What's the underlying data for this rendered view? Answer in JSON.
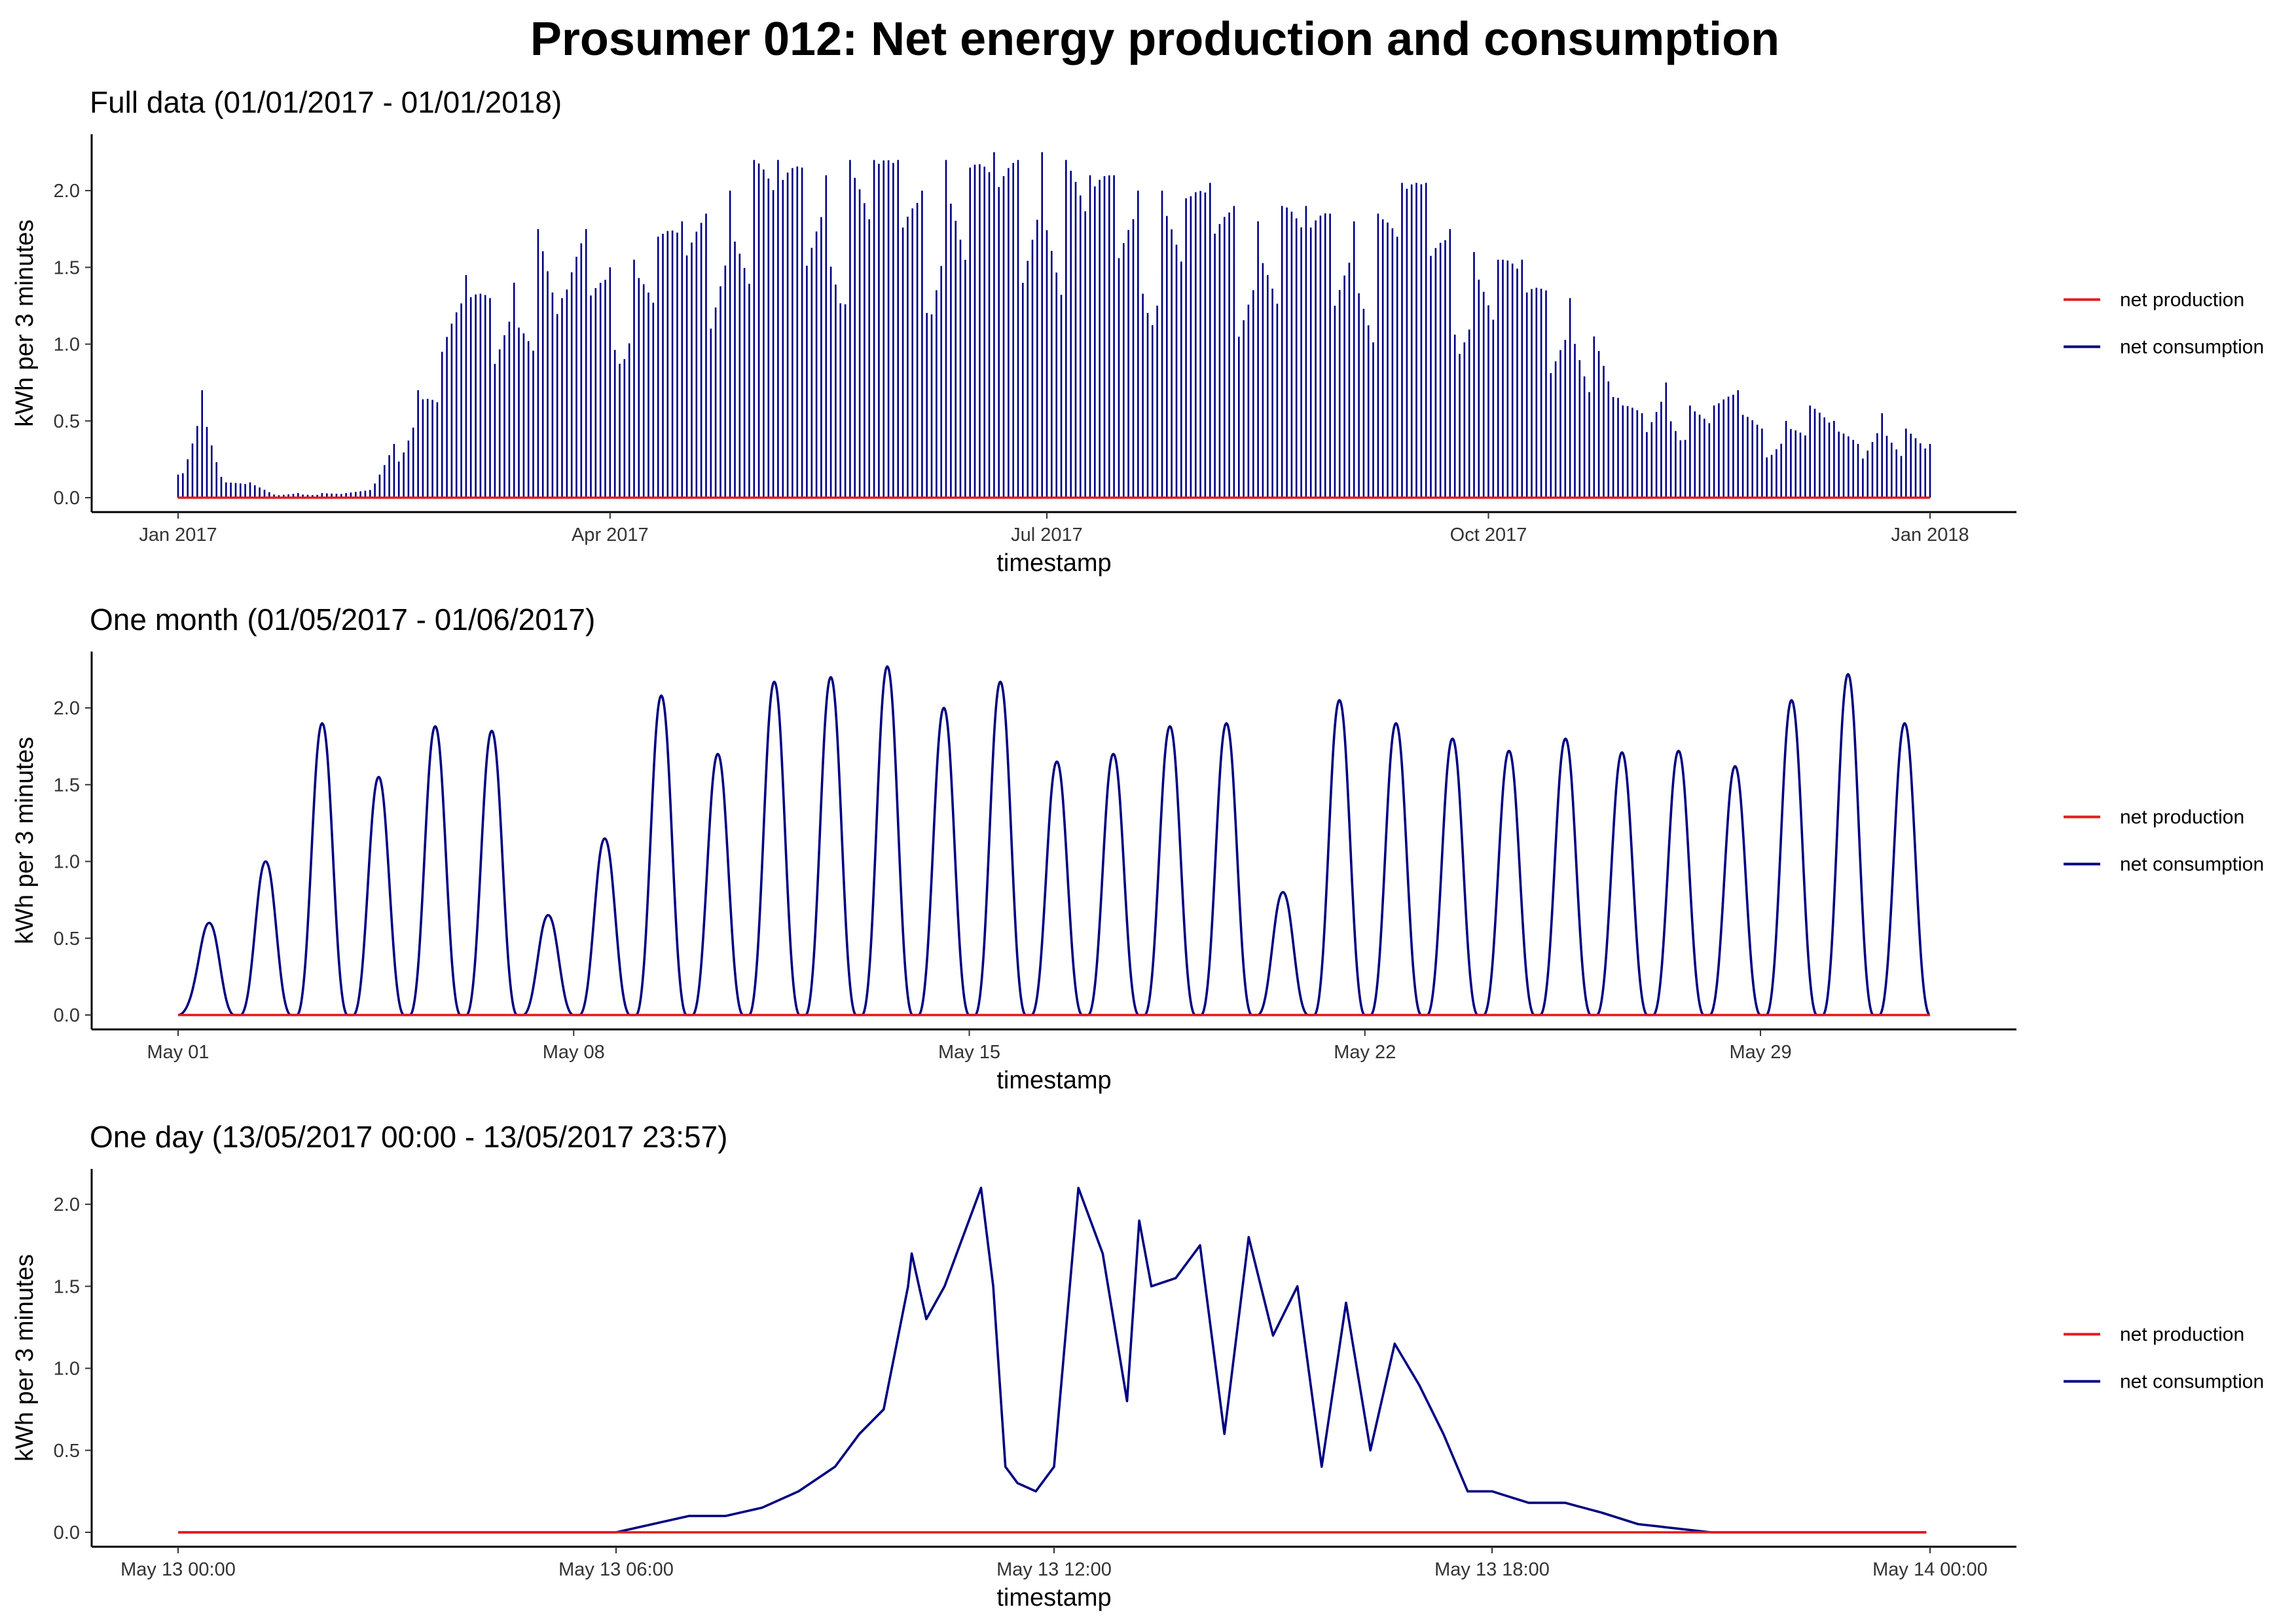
{
  "title": "Prosumer 012: Net energy production and consumption",
  "colors": {
    "net_production": "#e41a1c",
    "net_consumption": "#000080",
    "axis": "#000000",
    "tick_text": "#333333"
  },
  "legend": {
    "position": "right",
    "items": [
      {
        "label": "net production",
        "color": "#e41a1c"
      },
      {
        "label": "net consumption",
        "color": "#000080"
      }
    ]
  },
  "chart_data": [
    {
      "type": "line",
      "subtitle": "Full data (01/01/2017 - 01/01/2018)",
      "xlabel": "timestamp",
      "ylabel": "kWh per 3 minutes",
      "x_unit": "date",
      "x_ticks": [
        "Jan 2017",
        "Apr 2017",
        "Jul 2017",
        "Oct 2017",
        "Jan 2018"
      ],
      "x_tick_values": [
        "2017-01-01",
        "2017-04-01",
        "2017-07-01",
        "2017-10-01",
        "2018-01-01"
      ],
      "ylim": [
        0,
        2.35
      ],
      "y_ticks": [
        "0.0",
        "0.5",
        "1.0",
        "1.5",
        "2.0"
      ],
      "grid": false,
      "series": [
        {
          "name": "net production",
          "color": "#e41a1c",
          "x": [
            "2017-01-01",
            "2018-01-01"
          ],
          "values": [
            0,
            0
          ]
        },
        {
          "name": "net consumption",
          "color": "#000080",
          "x": [
            "2017-01-01",
            "2017-01-06",
            "2017-01-11",
            "2017-01-16",
            "2017-01-21",
            "2017-01-26",
            "2017-01-31",
            "2017-02-05",
            "2017-02-10",
            "2017-02-15",
            "2017-02-20",
            "2017-02-25",
            "2017-03-02",
            "2017-03-07",
            "2017-03-12",
            "2017-03-17",
            "2017-03-22",
            "2017-03-27",
            "2017-04-01",
            "2017-04-06",
            "2017-04-11",
            "2017-04-16",
            "2017-04-21",
            "2017-04-26",
            "2017-05-01",
            "2017-05-06",
            "2017-05-11",
            "2017-05-16",
            "2017-05-21",
            "2017-05-26",
            "2017-05-31",
            "2017-06-05",
            "2017-06-10",
            "2017-06-15",
            "2017-06-20",
            "2017-06-25",
            "2017-06-30",
            "2017-07-05",
            "2017-07-10",
            "2017-07-15",
            "2017-07-20",
            "2017-07-25",
            "2017-07-30",
            "2017-08-04",
            "2017-08-09",
            "2017-08-14",
            "2017-08-19",
            "2017-08-24",
            "2017-08-29",
            "2017-09-03",
            "2017-09-08",
            "2017-09-13",
            "2017-09-18",
            "2017-09-23",
            "2017-09-28",
            "2017-10-03",
            "2017-10-08",
            "2017-10-13",
            "2017-10-18",
            "2017-10-23",
            "2017-10-28",
            "2017-11-02",
            "2017-11-07",
            "2017-11-12",
            "2017-11-17",
            "2017-11-22",
            "2017-11-27",
            "2017-12-02",
            "2017-12-07",
            "2017-12-12",
            "2017-12-17",
            "2017-12-22",
            "2017-12-27",
            "2018-01-01"
          ],
          "values": [
            0.15,
            0.7,
            0.1,
            0.1,
            0.02,
            0.03,
            0.03,
            0.03,
            0.05,
            0.35,
            0.7,
            0.95,
            1.45,
            1.3,
            1.4,
            1.75,
            1.3,
            1.75,
            1.5,
            1.55,
            1.7,
            1.8,
            1.85,
            2.0,
            2.2,
            2.2,
            2.15,
            2.1,
            2.2,
            2.2,
            2.2,
            2.0,
            2.2,
            2.15,
            2.25,
            2.2,
            2.25,
            2.2,
            2.1,
            2.1,
            2.0,
            2.0,
            1.95,
            2.05,
            1.9,
            1.8,
            1.9,
            1.9,
            1.85,
            1.8,
            1.85,
            2.05,
            2.05,
            1.75,
            1.6,
            1.55,
            1.55,
            1.35,
            1.3,
            1.05,
            0.65,
            0.55,
            0.75,
            0.6,
            0.6,
            0.7,
            0.45,
            0.5,
            0.6,
            0.5,
            0.35,
            0.55,
            0.45,
            0.35
          ]
        }
      ]
    },
    {
      "type": "line",
      "subtitle": "One month (01/05/2017 - 01/06/2017)",
      "xlabel": "timestamp",
      "ylabel": "kWh per 3 minutes",
      "x_unit": "date",
      "x_ticks": [
        "May 01",
        "May 08",
        "May 15",
        "May 22",
        "May 29"
      ],
      "x_tick_values": [
        "2017-05-01",
        "2017-05-08",
        "2017-05-15",
        "2017-05-22",
        "2017-05-29"
      ],
      "ylim": [
        0,
        2.35
      ],
      "y_ticks": [
        "0.0",
        "0.5",
        "1.0",
        "1.5",
        "2.0"
      ],
      "grid": false,
      "series": [
        {
          "name": "net production",
          "color": "#e41a1c",
          "x": [
            "2017-05-01",
            "2017-06-01"
          ],
          "values": [
            0,
            0
          ]
        },
        {
          "name": "net consumption",
          "color": "#000080",
          "x": [
            "2017-05-01",
            "2017-05-02",
            "2017-05-03",
            "2017-05-04",
            "2017-05-05",
            "2017-05-06",
            "2017-05-07",
            "2017-05-08",
            "2017-05-09",
            "2017-05-10",
            "2017-05-11",
            "2017-05-12",
            "2017-05-13",
            "2017-05-14",
            "2017-05-15",
            "2017-05-16",
            "2017-05-17",
            "2017-05-18",
            "2017-05-19",
            "2017-05-20",
            "2017-05-21",
            "2017-05-22",
            "2017-05-23",
            "2017-05-24",
            "2017-05-25",
            "2017-05-26",
            "2017-05-27",
            "2017-05-28",
            "2017-05-29",
            "2017-05-30",
            "2017-05-31"
          ],
          "values": [
            0.6,
            1.0,
            1.9,
            1.55,
            1.88,
            1.85,
            0.65,
            1.15,
            2.08,
            1.7,
            2.17,
            2.2,
            2.27,
            2.0,
            2.17,
            1.65,
            1.7,
            1.88,
            1.9,
            0.8,
            2.05,
            1.9,
            1.8,
            1.72,
            1.8,
            1.71,
            1.72,
            1.62,
            2.05,
            2.22,
            1.9
          ]
        }
      ]
    },
    {
      "type": "line",
      "subtitle": "One day (13/05/2017 00:00 - 13/05/2017 23:57)",
      "xlabel": "timestamp",
      "ylabel": "kWh per 3 minutes",
      "x_unit": "datetime",
      "x_ticks": [
        "May 13 00:00",
        "May 13 06:00",
        "May 13 12:00",
        "May 13 18:00",
        "May 14 00:00"
      ],
      "x_tick_values": [
        "2017-05-13 00:00",
        "2017-05-13 06:00",
        "2017-05-13 12:00",
        "2017-05-13 18:00",
        "2017-05-14 00:00"
      ],
      "ylim": [
        0,
        2.2
      ],
      "y_ticks": [
        "0.0",
        "0.5",
        "1.0",
        "1.5",
        "2.0"
      ],
      "grid": false,
      "series": [
        {
          "name": "net production",
          "color": "#e41a1c",
          "x": [
            "2017-05-13 00:00",
            "2017-05-13 23:57"
          ],
          "values": [
            0,
            0
          ]
        },
        {
          "name": "net consumption",
          "color": "#000080",
          "x": [
            "00:00",
            "06:00",
            "06:30",
            "07:00",
            "07:30",
            "08:00",
            "08:30",
            "09:00",
            "09:20",
            "09:40",
            "10:00",
            "10:03",
            "10:15",
            "10:30",
            "10:45",
            "11:00",
            "11:10",
            "11:20",
            "11:30",
            "11:45",
            "12:00",
            "12:20",
            "12:40",
            "13:00",
            "13:10",
            "13:20",
            "13:40",
            "14:00",
            "14:20",
            "14:40",
            "15:00",
            "15:20",
            "15:40",
            "16:00",
            "16:20",
            "16:40",
            "17:00",
            "17:20",
            "17:40",
            "18:00",
            "18:30",
            "19:00",
            "19:30",
            "20:00",
            "21:00",
            "23:57"
          ],
          "values": [
            0,
            0,
            0.05,
            0.1,
            0.1,
            0.15,
            0.25,
            0.4,
            0.6,
            0.75,
            1.5,
            1.7,
            1.3,
            1.5,
            1.8,
            2.1,
            1.5,
            0.4,
            0.3,
            0.25,
            0.4,
            2.1,
            1.7,
            0.8,
            1.9,
            1.5,
            1.55,
            1.75,
            0.6,
            1.8,
            1.2,
            1.5,
            0.4,
            1.4,
            0.5,
            1.15,
            0.9,
            0.6,
            0.25,
            0.25,
            0.18,
            0.18,
            0.12,
            0.05,
            0,
            0
          ]
        }
      ]
    }
  ]
}
